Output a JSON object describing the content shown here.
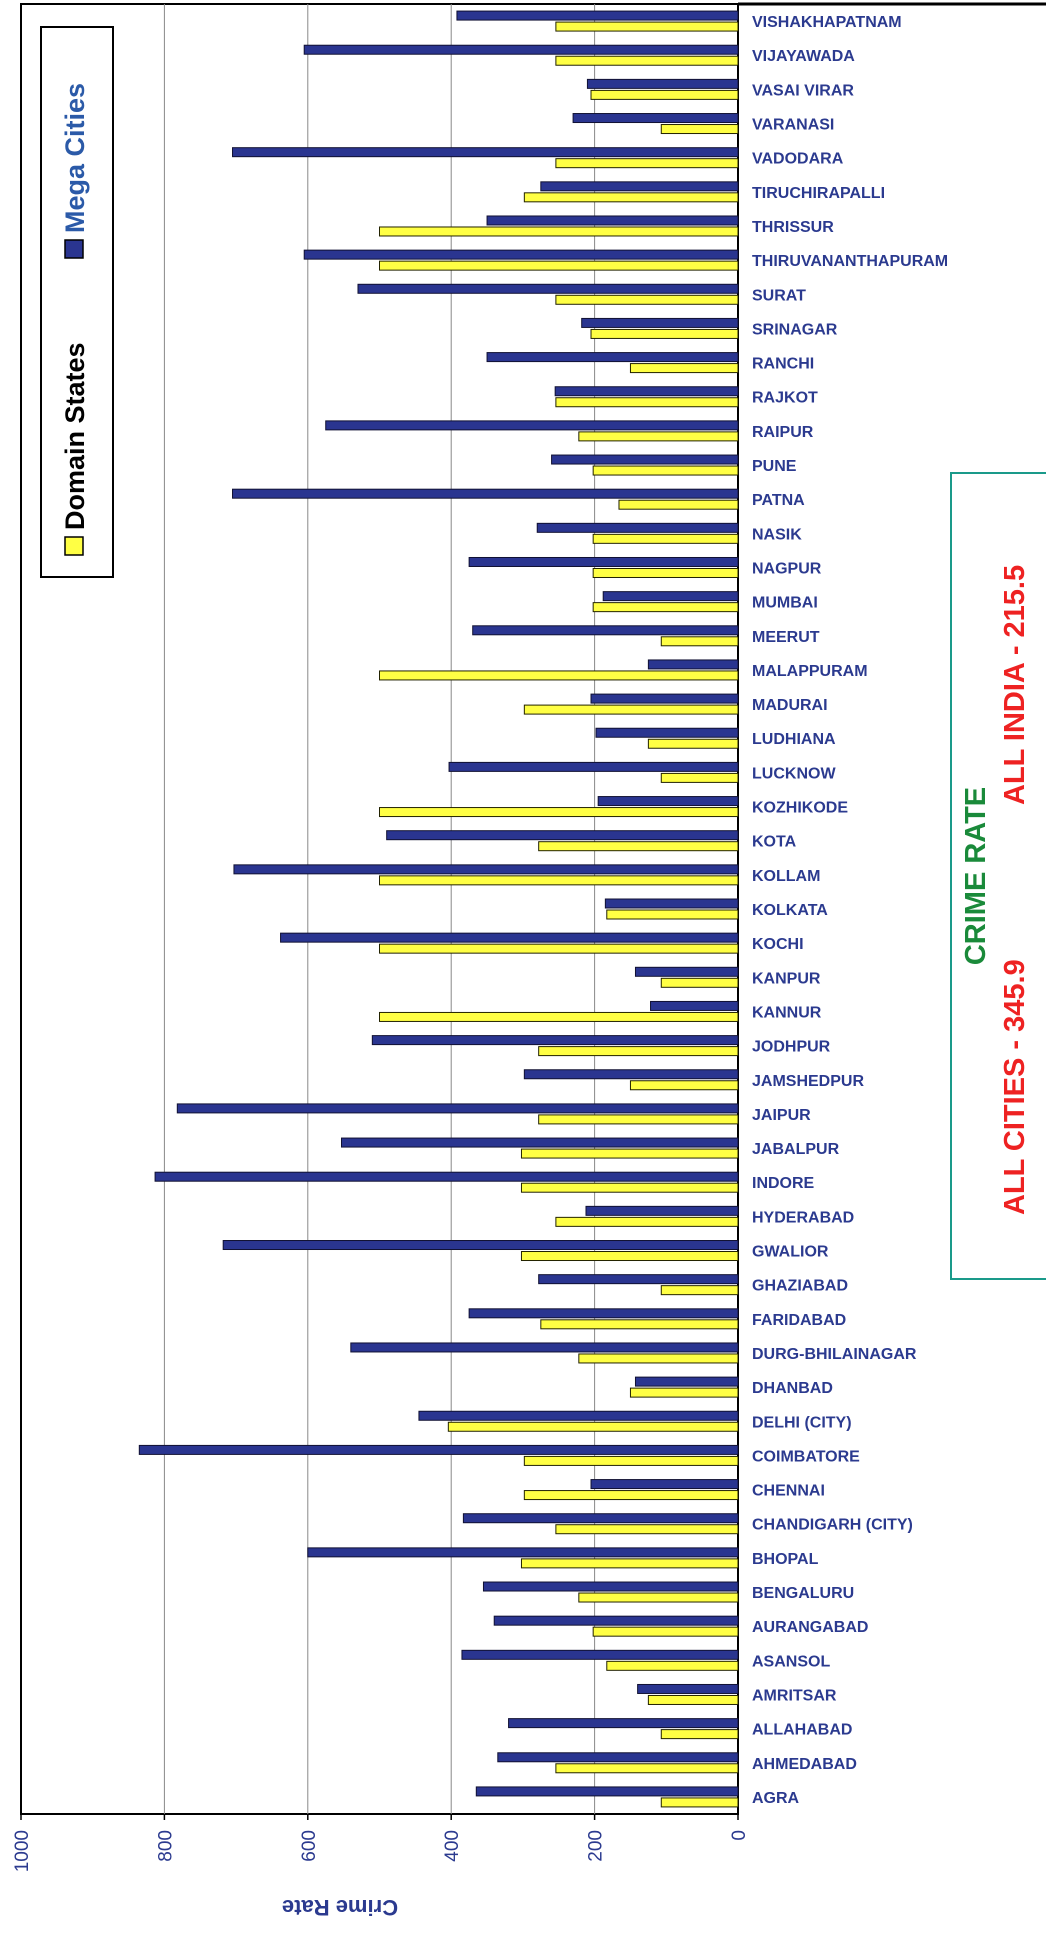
{
  "chart_data": {
    "type": "bar",
    "orientation": "horizontal",
    "rotated": "90 degrees clockwise",
    "ylabel": "Crime Rate",
    "xlabel": "",
    "ylim": [
      0,
      1000
    ],
    "ticks": [
      "0",
      "200",
      "400",
      "600",
      "800",
      "1000"
    ],
    "grid": true,
    "legend_placement": "top-left",
    "categories": [
      "AGRA",
      "AHMEDABAD",
      "ALLAHABAD",
      "AMRITSAR",
      "ASANSOL",
      "AURANGABAD",
      "BENGALURU",
      "BHOPAL",
      "CHANDIGARH (CITY)",
      "CHENNAI",
      "COIMBATORE",
      "DELHI (CITY)",
      "DHANBAD",
      "DURG-BHILAINAGAR",
      "FARIDABAD",
      "GHAZIABAD",
      "GWALIOR",
      "HYDERABAD",
      "INDORE",
      "JABALPUR",
      "JAIPUR",
      "JAMSHEDPUR",
      "JODHPUR",
      "KANNUR",
      "KANPUR",
      "KOCHI",
      "KOLKATA",
      "KOLLAM",
      "KOTA",
      "KOZHIKODE",
      "LUCKNOW",
      "LUDHIANA",
      "MADURAI",
      "MALAPPURAM",
      "MEERUT",
      "MUMBAI",
      "NAGPUR",
      "NASIK",
      "PATNA",
      "PUNE",
      "RAIPUR",
      "RAJKOT",
      "RANCHI",
      "SRINAGAR",
      "SURAT",
      "THIRUVANANTHAPURAM",
      "THRISSUR",
      "TIRUCHIRAPALLI",
      "VADODARA",
      "VARANASI",
      "VASAI VIRAR",
      "VIJAYAWADA",
      "VISHAKHAPATNAM"
    ],
    "series": [
      {
        "name": "Domain States",
        "color": "#ffff44",
        "values": [
          107,
          254,
          107,
          125,
          183,
          202,
          222,
          302,
          254,
          298,
          298,
          404,
          150,
          222,
          275,
          107,
          302,
          254,
          302,
          302,
          278,
          150,
          278,
          500,
          107,
          500,
          183,
          500,
          278,
          500,
          107,
          125,
          298,
          500,
          107,
          202,
          202,
          202,
          166,
          202,
          222,
          254,
          150,
          205,
          254,
          500,
          500,
          298,
          254,
          107,
          205,
          254,
          254
        ]
      },
      {
        "name": "Mega Cities",
        "color": "#2a3590",
        "values": [
          365,
          335,
          320,
          140,
          385,
          340,
          355,
          600,
          383,
          205,
          835,
          445,
          143,
          540,
          375,
          278,
          718,
          212,
          813,
          553,
          782,
          298,
          510,
          122,
          143,
          638,
          185,
          703,
          490,
          195,
          403,
          198,
          205,
          125,
          370,
          188,
          375,
          280,
          705,
          260,
          575,
          255,
          350,
          218,
          530,
          605,
          350,
          275,
          705,
          230,
          210,
          605,
          392
        ]
      }
    ]
  },
  "note": {
    "title": "CRIME RATE",
    "line1": "ALL CITIES  -  345.9",
    "line2": "ALL INDIA - 215.5",
    "title_color": "#1a8a3a",
    "line_color": "#ee2222"
  }
}
